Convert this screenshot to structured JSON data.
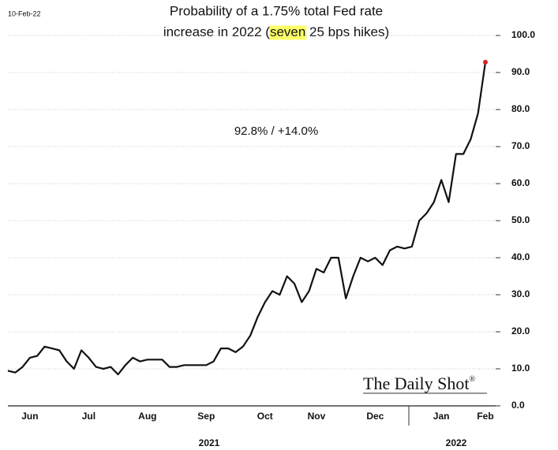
{
  "chart_data": {
    "type": "line",
    "date_stamp": "10-Feb-22",
    "title_line1": "Probability of a 1.75% total Fed rate",
    "title_line2": [
      "increase in 2022 (",
      "seven",
      " 25 bps hikes)"
    ],
    "highlight_color": "#ffff66",
    "annotation": "92.8%  /  +14.0%",
    "watermark": "The Daily Shot",
    "watermark_mark": "®",
    "year_labels": [
      "2021",
      "2022"
    ],
    "categories": [
      null,
      null,
      null,
      "Jun",
      null,
      null,
      null,
      null,
      null,
      null,
      null,
      "Jul",
      null,
      null,
      null,
      null,
      null,
      null,
      null,
      "Aug",
      null,
      null,
      null,
      null,
      null,
      null,
      null,
      "Sep",
      null,
      null,
      null,
      null,
      null,
      null,
      null,
      "Oct",
      null,
      null,
      null,
      null,
      null,
      null,
      "Nov",
      null,
      null,
      null,
      null,
      null,
      null,
      null,
      "Dec",
      null,
      null,
      null,
      null,
      null,
      null,
      null,
      null,
      "Jan",
      null,
      null,
      null,
      null,
      null,
      "Feb"
    ],
    "values": [
      9.5,
      9,
      10.5,
      13,
      13.5,
      16,
      15.5,
      15,
      12,
      10,
      15,
      13,
      10.5,
      10,
      10.5,
      8.5,
      11,
      13,
      12,
      12.5,
      12.5,
      12.5,
      10.5,
      10.5,
      11,
      11,
      11,
      11,
      12,
      15.5,
      15.5,
      14.5,
      16,
      19,
      24,
      28,
      31,
      30,
      35,
      33,
      28,
      31,
      37,
      36,
      40,
      40,
      29,
      35,
      40,
      39,
      40,
      38,
      42,
      43,
      42.5,
      43,
      50,
      52,
      55,
      61,
      55,
      68,
      68,
      72,
      79,
      92.8
    ],
    "color": "#111111",
    "end_marker_color": "#e02020",
    "ylim": [
      0,
      100
    ],
    "yticks": [
      {
        "value": 0,
        "label": "0.0"
      },
      {
        "value": 10,
        "label": "10.0"
      },
      {
        "value": 20,
        "label": "20.0"
      },
      {
        "value": 30,
        "label": "30.0"
      },
      {
        "value": 40,
        "label": "40.0"
      },
      {
        "value": 50,
        "label": "50.0"
      },
      {
        "value": 60,
        "label": "60.0"
      },
      {
        "value": 70,
        "label": "70.0"
      },
      {
        "value": 80,
        "label": "80.0"
      },
      {
        "value": 90,
        "label": "90.0"
      },
      {
        "value": 100,
        "label": "100.0"
      }
    ],
    "grid": true,
    "y_axis_side": "right"
  }
}
